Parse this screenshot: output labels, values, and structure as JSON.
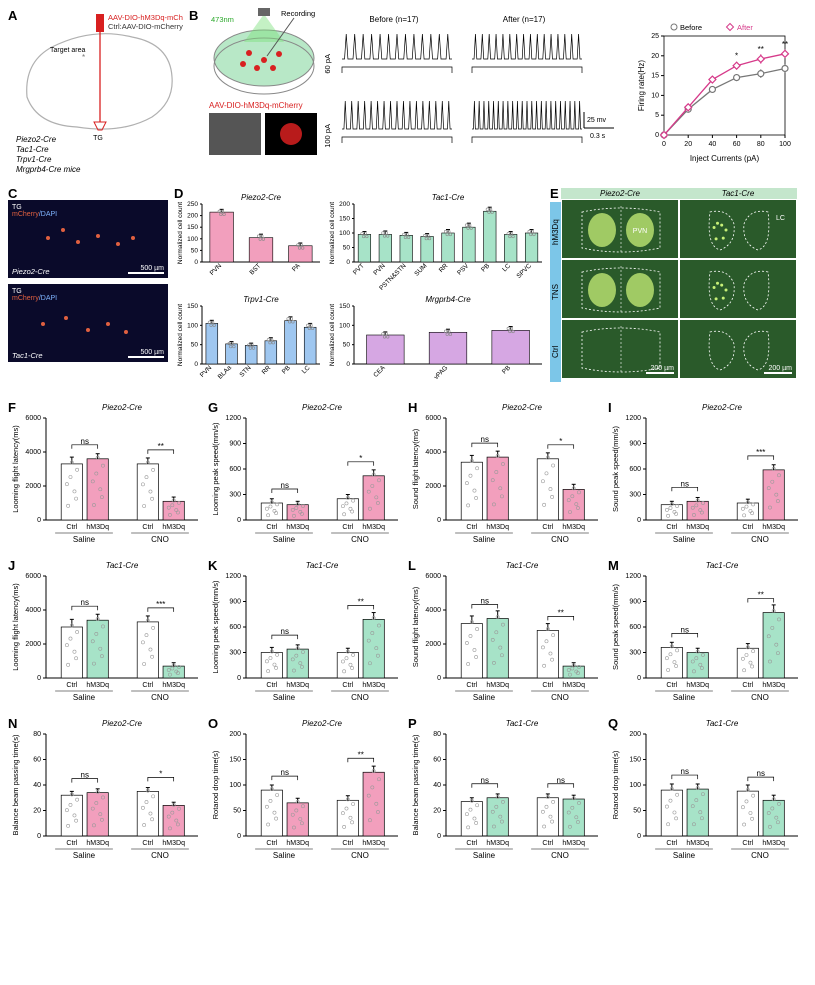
{
  "panels": {
    "A": {
      "virus": "AAV-DIO-hM3Dq-mCherry",
      "ctrl": "Ctrl:AAV-DIO-mCherry",
      "target": "Target area",
      "tg": "TG",
      "cre_lines": [
        "Piezo2-Cre",
        "Tac1-Cre",
        "Trpv1-Cre",
        "Mrgprb4-Cre  mice"
      ],
      "virus_color": "#d82020",
      "outline_color": "#b0b0b0"
    },
    "B": {
      "recording_label": "Recording",
      "wavelength": "473nm",
      "virus_label": "AAV-DIO-hM3Dq-mCherry",
      "dish_green": "#b8e8c7",
      "dots_red": "#d82020",
      "before_n": "Before (n=17)",
      "after_n": "After (n=17)",
      "trace_60": "60 pA",
      "trace_100": "100 pA",
      "scale_x": "0.3 s",
      "scale_y": "25 mv",
      "chart": {
        "type": "line",
        "title": "",
        "series_legend": [
          "Before",
          "After"
        ],
        "series_colors": [
          "#777777",
          "#d63a8a"
        ],
        "x_values": [
          0,
          20,
          40,
          60,
          80,
          100
        ],
        "before": [
          0,
          6.5,
          11.5,
          14.5,
          15.5,
          16.8
        ],
        "after": [
          0,
          7.0,
          14.0,
          17.5,
          19.2,
          20.5
        ],
        "before_err": [
          0,
          0.6,
          0.8,
          0.9,
          1.1,
          1.0
        ],
        "after_err": [
          0,
          0.7,
          0.9,
          1.0,
          1.2,
          1.1
        ],
        "ylabel": "Firing rate(Hz)",
        "xlabel": "Inject Currents (pA)",
        "ylim": [
          0,
          25
        ],
        "ytick_step": 5,
        "xlim": [
          0,
          100
        ],
        "xtick_step": 20,
        "sig": {
          "60": "*",
          "80": "**",
          "100": "**"
        }
      }
    },
    "C": {
      "top_label": "Piezo2-Cre",
      "bottom_label": "Tac1-Cre",
      "overlay": "mCherry/DAPI",
      "tg": "TG",
      "scalebar": "500 µm",
      "bg": "#0a0a2a",
      "mcherry": "#e06040"
    },
    "D": {
      "subplots": [
        {
          "title": "Piezo2-Cre",
          "color": "#f29fbd",
          "ylabel": "Normalized cell count",
          "categories": [
            "PVN",
            "BST",
            "PA"
          ],
          "values": [
            215,
            105,
            70
          ],
          "err": [
            12,
            15,
            12
          ],
          "ylim": [
            0,
            250
          ],
          "ytick_step": 50
        },
        {
          "title": "Tac1-Cre",
          "color": "#a7e3c8",
          "ylabel": "Normalized cell count",
          "categories": [
            "PVT",
            "PVN",
            "PSTN&STN",
            "SUM",
            "RR",
            "PSV",
            "PB",
            "LC",
            "SPVC"
          ],
          "values": [
            95,
            95,
            92,
            88,
            100,
            120,
            175,
            95,
            100
          ],
          "err": [
            10,
            12,
            10,
            10,
            12,
            14,
            14,
            10,
            12
          ],
          "ylim": [
            0,
            200
          ],
          "ytick_step": 50
        },
        {
          "title": "Trpv1-Cre",
          "color": "#9fc7f0",
          "ylabel": "Normalized cell count",
          "categories": [
            "PVN",
            "BLAa",
            "STN",
            "RR",
            "PB",
            "LC"
          ],
          "values": [
            105,
            52,
            48,
            60,
            112,
            95
          ],
          "err": [
            8,
            6,
            6,
            8,
            10,
            10
          ],
          "ylim": [
            0,
            150
          ],
          "ytick_step": 50
        },
        {
          "title": "Mrgprb4-Cre",
          "color": "#d6a7e3",
          "ylabel": "Normalized cell count",
          "categories": [
            "CEA",
            "vPAG",
            "PB"
          ],
          "values": [
            75,
            82,
            87
          ],
          "err": [
            8,
            8,
            10
          ],
          "ylim": [
            0,
            150
          ],
          "ytick_step": 50
        }
      ]
    },
    "E": {
      "cols": [
        "Piezo2-Cre",
        "Tac1-Cre"
      ],
      "rows": [
        "hM3Dq",
        "TNS",
        "Ctrl"
      ],
      "region_piezo": "PVN",
      "region_tac": "LC",
      "scalebar": "200 µm",
      "green": "#2a5a2a",
      "bright": "#c8f078",
      "side_bg": "#7cc6e8",
      "head_bg": "#c4e6cc"
    },
    "bar4": {
      "group_labels": [
        "Ctrl",
        "hM3Dq",
        "Ctrl",
        "hM3Dq"
      ],
      "section_labels": [
        "Saline",
        "CNO"
      ]
    },
    "F": {
      "title": "Piezo2-Cre",
      "ylabel": "Looming flight latency(ms)",
      "colors": [
        "#ffffff",
        "#f29fbd"
      ],
      "ylim": [
        0,
        6000
      ],
      "ytick_step": 2000,
      "vals": [
        3300,
        3600,
        3300,
        1100
      ],
      "err": [
        400,
        300,
        350,
        250
      ],
      "sig": [
        "ns",
        "**"
      ]
    },
    "G": {
      "title": "Piezo2-Cre",
      "ylabel": "Looming peak speed(mm/s)",
      "colors": [
        "#ffffff",
        "#f29fbd"
      ],
      "ylim": [
        0,
        1200
      ],
      "ytick_step": 300,
      "vals": [
        200,
        180,
        250,
        520
      ],
      "err": [
        50,
        40,
        50,
        70
      ],
      "sig": [
        "ns",
        "*"
      ]
    },
    "H": {
      "title": "Piezo2-Cre",
      "ylabel": "Sound flight latency(ms)",
      "colors": [
        "#ffffff",
        "#f29fbd"
      ],
      "ylim": [
        0,
        6000
      ],
      "ytick_step": 2000,
      "vals": [
        3400,
        3700,
        3600,
        1800
      ],
      "err": [
        400,
        350,
        350,
        300
      ],
      "sig": [
        "ns",
        "*"
      ]
    },
    "I": {
      "title": "Piezo2-Cre",
      "ylabel": "Sound peak speed(mm/s)",
      "colors": [
        "#ffffff",
        "#f29fbd"
      ],
      "ylim": [
        0,
        1200
      ],
      "ytick_step": 300,
      "vals": [
        180,
        220,
        200,
        590
      ],
      "err": [
        40,
        45,
        45,
        60
      ],
      "sig": [
        "ns",
        "***"
      ]
    },
    "J": {
      "title": "Tac1-Cre",
      "ylabel": "Looming flight latency(ms)",
      "colors": [
        "#ffffff",
        "#a7e3c8"
      ],
      "ylim": [
        0,
        6000
      ],
      "ytick_step": 2000,
      "vals": [
        3000,
        3400,
        3300,
        700
      ],
      "err": [
        450,
        350,
        350,
        200
      ],
      "sig": [
        "ns",
        "***"
      ]
    },
    "K": {
      "title": "Tac1-Cre",
      "ylabel": "Looming peak speed(mm/s)",
      "colors": [
        "#ffffff",
        "#a7e3c8"
      ],
      "ylim": [
        0,
        1200
      ],
      "ytick_step": 300,
      "vals": [
        300,
        340,
        300,
        690
      ],
      "err": [
        60,
        50,
        50,
        80
      ],
      "sig": [
        "ns",
        "**"
      ]
    },
    "L": {
      "title": "Tac1-Cre",
      "ylabel": "Sound flight latency(ms)",
      "colors": [
        "#ffffff",
        "#a7e3c8"
      ],
      "ylim": [
        0,
        6000
      ],
      "ytick_step": 2000,
      "vals": [
        3200,
        3500,
        2800,
        700
      ],
      "err": [
        450,
        450,
        400,
        200
      ],
      "sig": [
        "ns",
        "**"
      ]
    },
    "M": {
      "title": "Tac1-Cre",
      "ylabel": "Sound peak speed(mm/s)",
      "colors": [
        "#ffffff",
        "#a7e3c8"
      ],
      "ylim": [
        0,
        1200
      ],
      "ytick_step": 300,
      "vals": [
        360,
        300,
        350,
        770
      ],
      "err": [
        60,
        50,
        55,
        90
      ],
      "sig": [
        "ns",
        "**"
      ]
    },
    "N": {
      "title": "Piezo2-Cre",
      "ylabel": "Balance beam passing time(s)",
      "colors": [
        "#ffffff",
        "#f29fbd"
      ],
      "ylim": [
        0,
        80
      ],
      "ytick_step": 20,
      "vals": [
        32,
        34,
        35,
        24
      ],
      "err": [
        3,
        3,
        3,
        2.5
      ],
      "sig": [
        "ns",
        "*"
      ]
    },
    "O": {
      "title": "Piezo2-Cre",
      "ylabel": "Rotarod drop time(s)",
      "colors": [
        "#ffffff",
        "#f29fbd"
      ],
      "ylim": [
        0,
        200
      ],
      "ytick_step": 50,
      "vals": [
        90,
        65,
        70,
        125
      ],
      "err": [
        10,
        9,
        9,
        12
      ],
      "sig": [
        "ns",
        "**"
      ]
    },
    "P": {
      "title": "Tac1-Cre",
      "ylabel": "Balance beam passing time(s)",
      "colors": [
        "#ffffff",
        "#a7e3c8"
      ],
      "ylim": [
        0,
        80
      ],
      "ytick_step": 20,
      "vals": [
        27,
        30,
        30,
        29
      ],
      "err": [
        3,
        3,
        3,
        3
      ],
      "sig": [
        "ns",
        "ns"
      ]
    },
    "Q": {
      "title": "Tac1-Cre",
      "ylabel": "Rotarod drop time(s)",
      "colors": [
        "#ffffff",
        "#a7e3c8"
      ],
      "ylim": [
        0,
        200
      ],
      "ytick_step": 50,
      "vals": [
        90,
        92,
        88,
        70
      ],
      "err": [
        12,
        10,
        12,
        10
      ],
      "sig": [
        "ns",
        "ns"
      ]
    }
  }
}
